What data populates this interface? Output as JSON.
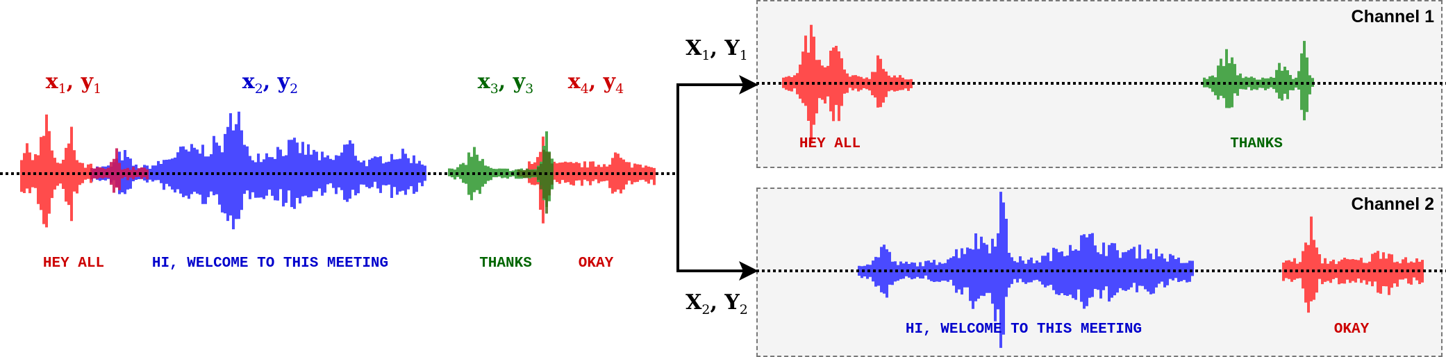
{
  "colors": {
    "red": "#ff4c4c",
    "blue": "#4a4aff",
    "green": "#4ca64c",
    "red_text": "#cc0000",
    "blue_text": "#0000cc",
    "green_text": "#006600"
  },
  "mixture": {
    "segments": [
      {
        "var_x": "x",
        "var_y": "y",
        "sub": "1",
        "transcript": "HEY ALL",
        "color": "red"
      },
      {
        "var_x": "x",
        "var_y": "y",
        "sub": "2",
        "transcript": "HI, WELCOME TO THIS MEETING",
        "color": "blue"
      },
      {
        "var_x": "x",
        "var_y": "y",
        "sub": "3",
        "transcript": "THANKS",
        "color": "green"
      },
      {
        "var_x": "x",
        "var_y": "y",
        "sub": "4",
        "transcript": "OKAY",
        "color": "red"
      }
    ]
  },
  "outputs": [
    {
      "var_x": "X",
      "var_y": "Y",
      "sub": "1"
    },
    {
      "var_x": "X",
      "var_y": "Y",
      "sub": "2"
    }
  ],
  "channels": [
    {
      "title": "Channel 1",
      "transcripts": [
        "HEY ALL",
        "THANKS"
      ]
    },
    {
      "title": "Channel 2",
      "transcripts": [
        "HI, WELCOME TO THIS MEETING",
        "OKAY"
      ]
    }
  ]
}
